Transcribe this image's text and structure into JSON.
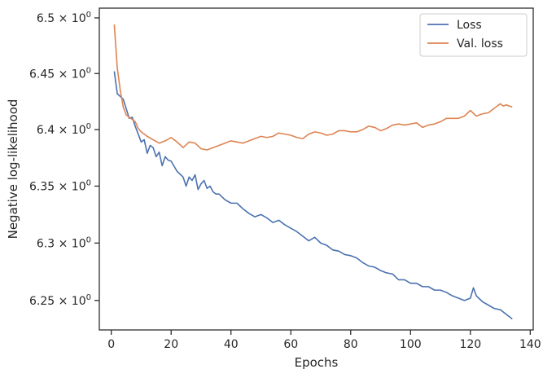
{
  "chart_data": {
    "type": "line",
    "xlabel": "Epochs",
    "ylabel": "Negative log-likelihood",
    "xlim": [
      -4,
      141
    ],
    "ylim": [
      6.2245,
      6.5088
    ],
    "y_scale": "log",
    "grid": false,
    "legend_position": "top-right",
    "x_ticks": [
      {
        "value": 0,
        "label": "0"
      },
      {
        "value": 20,
        "label": "20"
      },
      {
        "value": 40,
        "label": "40"
      },
      {
        "value": 60,
        "label": "60"
      },
      {
        "value": 80,
        "label": "80"
      },
      {
        "value": 100,
        "label": "100"
      },
      {
        "value": 120,
        "label": "120"
      },
      {
        "value": 140,
        "label": "140"
      }
    ],
    "y_ticks": [
      {
        "value": 6.25,
        "mantissa": "6.25",
        "base": "10",
        "exponent": "0"
      },
      {
        "value": 6.3,
        "mantissa": "6.3",
        "base": "10",
        "exponent": "0"
      },
      {
        "value": 6.35,
        "mantissa": "6.35",
        "base": "10",
        "exponent": "0"
      },
      {
        "value": 6.4,
        "mantissa": "6.4",
        "base": "10",
        "exponent": "0"
      },
      {
        "value": 6.45,
        "mantissa": "6.45",
        "base": "10",
        "exponent": "0"
      },
      {
        "value": 6.5,
        "mantissa": "6.5",
        "base": "10",
        "exponent": "0"
      }
    ],
    "times_sign": "×",
    "series": [
      {
        "name": "Loss",
        "color": "#4c72b0",
        "x": [
          1,
          2,
          4,
          6,
          7,
          8,
          10,
          11,
          12,
          13,
          14,
          15,
          16,
          17,
          18,
          19,
          20,
          22,
          24,
          25,
          26,
          27,
          28,
          29,
          30,
          31,
          32,
          33,
          34,
          35,
          36,
          38,
          40,
          42,
          44,
          46,
          48,
          50,
          52,
          54,
          56,
          58,
          60,
          62,
          64,
          66,
          68,
          70,
          72,
          74,
          76,
          78,
          80,
          82,
          84,
          86,
          88,
          90,
          92,
          94,
          96,
          98,
          100,
          102,
          104,
          106,
          108,
          110,
          112,
          114,
          116,
          118,
          120,
          121,
          122,
          124,
          126,
          128,
          130,
          132,
          134
        ],
        "values": [
          6.452,
          6.432,
          6.427,
          6.41,
          6.411,
          6.403,
          6.389,
          6.391,
          6.379,
          6.386,
          6.384,
          6.376,
          6.38,
          6.368,
          6.376,
          6.373,
          6.372,
          6.363,
          6.358,
          6.35,
          6.358,
          6.355,
          6.36,
          6.347,
          6.352,
          6.355,
          6.348,
          6.35,
          6.345,
          6.343,
          6.343,
          6.338,
          6.335,
          6.335,
          6.33,
          6.326,
          6.323,
          6.325,
          6.322,
          6.318,
          6.32,
          6.316,
          6.313,
          6.31,
          6.306,
          6.302,
          6.305,
          6.3,
          6.298,
          6.294,
          6.293,
          6.29,
          6.289,
          6.287,
          6.283,
          6.28,
          6.279,
          6.276,
          6.274,
          6.273,
          6.268,
          6.268,
          6.265,
          6.265,
          6.262,
          6.262,
          6.259,
          6.259,
          6.257,
          6.254,
          6.252,
          6.25,
          6.252,
          6.261,
          6.254,
          6.249,
          6.246,
          6.243,
          6.242,
          6.238,
          6.234
        ]
      },
      {
        "name": "Val. loss",
        "color": "#dd8452",
        "x": [
          1,
          2,
          3,
          4,
          5,
          6,
          7,
          8,
          9,
          10,
          12,
          14,
          16,
          18,
          20,
          22,
          24,
          26,
          28,
          30,
          32,
          34,
          36,
          38,
          40,
          42,
          44,
          46,
          48,
          50,
          52,
          54,
          56,
          58,
          60,
          62,
          64,
          66,
          68,
          70,
          72,
          74,
          76,
          78,
          80,
          82,
          84,
          86,
          88,
          90,
          92,
          94,
          96,
          98,
          100,
          102,
          104,
          106,
          108,
          110,
          112,
          114,
          116,
          118,
          120,
          122,
          124,
          126,
          128,
          130,
          131,
          132,
          134
        ],
        "values": [
          6.494,
          6.455,
          6.435,
          6.42,
          6.413,
          6.411,
          6.409,
          6.407,
          6.401,
          6.398,
          6.394,
          6.391,
          6.388,
          6.39,
          6.393,
          6.389,
          6.384,
          6.389,
          6.388,
          6.383,
          6.382,
          6.384,
          6.386,
          6.388,
          6.39,
          6.389,
          6.388,
          6.39,
          6.392,
          6.394,
          6.393,
          6.394,
          6.397,
          6.396,
          6.395,
          6.393,
          6.392,
          6.396,
          6.398,
          6.397,
          6.395,
          6.396,
          6.399,
          6.399,
          6.398,
          6.398,
          6.4,
          6.403,
          6.402,
          6.399,
          6.401,
          6.404,
          6.405,
          6.404,
          6.405,
          6.406,
          6.402,
          6.404,
          6.405,
          6.407,
          6.41,
          6.41,
          6.41,
          6.412,
          6.417,
          6.412,
          6.414,
          6.415,
          6.419,
          6.423,
          6.421,
          6.422,
          6.42
        ]
      }
    ]
  }
}
